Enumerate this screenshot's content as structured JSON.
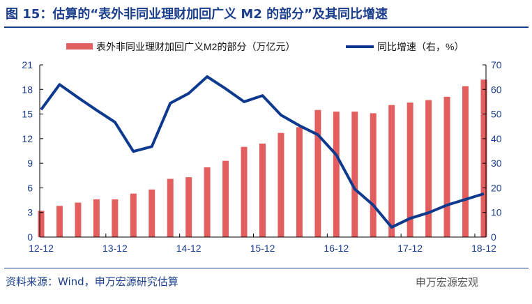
{
  "title": "图 15：估算的“表外非同业理财加回广义 M2 的部分”及其同比增速",
  "source": "资料来源：Wind，申万宏源研究估算",
  "watermark": "申万宏源宏观",
  "chart_data": {
    "type": "bar+line",
    "legend_position": "top",
    "x": [
      "12-12",
      "13-03",
      "13-06",
      "13-09",
      "13-12",
      "14-03",
      "14-06",
      "14-09",
      "14-12",
      "15-03",
      "15-06",
      "15-09",
      "15-12",
      "16-03",
      "16-06",
      "16-09",
      "16-12",
      "17-03",
      "17-06",
      "17-09",
      "17-12",
      "18-03",
      "18-06",
      "18-09",
      "18-12"
    ],
    "x_tick_labels": [
      "12-12",
      "13-12",
      "14-12",
      "15-12",
      "16-12",
      "17-12",
      "18-12"
    ],
    "series": [
      {
        "name": "表外非同业理财加回广义M2的部分（万亿元）",
        "type": "bar",
        "axis": "left",
        "color": "#e35f5f",
        "values": [
          3.2,
          3.8,
          4.2,
          4.6,
          4.6,
          5.3,
          5.8,
          7.1,
          7.3,
          8.5,
          9.3,
          11.0,
          11.4,
          12.7,
          13.4,
          15.5,
          15.3,
          15.3,
          15.1,
          16.1,
          16.4,
          16.7,
          17.1,
          18.4,
          19.2
        ]
      },
      {
        "name": "同比增速（右，%）",
        "type": "line",
        "axis": "right",
        "color": "#0d3a8f",
        "values": [
          51.8,
          62.0,
          56.7,
          51.6,
          46.7,
          34.8,
          36.8,
          54.4,
          58.4,
          65.2,
          60.3,
          55.0,
          57.5,
          49.6,
          45.3,
          41.6,
          33.4,
          19.5,
          13.0,
          4.0,
          7.6,
          9.9,
          13.0,
          15.3,
          17.6
        ]
      }
    ],
    "y_left": {
      "range": [
        0,
        21
      ],
      "ticks": [
        0,
        3,
        6,
        9,
        12,
        15,
        18,
        21
      ]
    },
    "y_right": {
      "range": [
        0,
        70
      ],
      "ticks": [
        0,
        10,
        20,
        30,
        40,
        50,
        60,
        70
      ]
    },
    "grid": false
  }
}
